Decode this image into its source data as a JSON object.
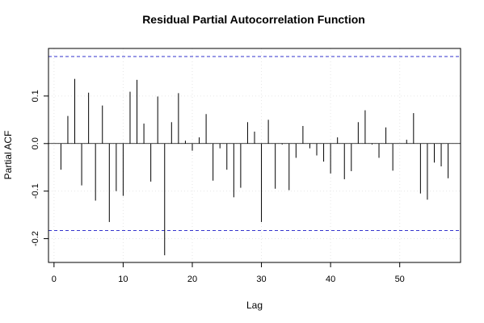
{
  "chart_data": {
    "type": "bar",
    "title": "Residual Partial Autocorrelation Function",
    "xlabel": "Lag",
    "ylabel": "Partial ACF",
    "xlim": [
      -0.8,
      58.8
    ],
    "ylim": [
      -0.25,
      0.2
    ],
    "x_ticks": [
      0,
      10,
      20,
      30,
      40,
      50
    ],
    "y_ticks": [
      -0.2,
      -0.1,
      0.0,
      0.1
    ],
    "y_tick_labels": [
      "-0.2",
      "-0.1",
      "0.0",
      "0.1"
    ],
    "grid": true,
    "confidence_bounds": [
      0.183,
      -0.183
    ],
    "bound_color": "#3333cc",
    "lags": [
      1,
      2,
      3,
      4,
      5,
      6,
      7,
      8,
      9,
      10,
      11,
      12,
      13,
      14,
      15,
      16,
      17,
      18,
      19,
      20,
      21,
      22,
      23,
      24,
      25,
      26,
      27,
      28,
      29,
      30,
      31,
      32,
      33,
      34,
      35,
      36,
      37,
      38,
      39,
      40,
      41,
      42,
      43,
      44,
      45,
      46,
      47,
      48,
      49,
      50,
      51,
      52,
      53,
      54,
      55,
      56,
      57
    ],
    "values": [
      -0.055,
      0.058,
      0.136,
      -0.088,
      0.107,
      -0.12,
      0.08,
      -0.165,
      -0.1,
      -0.11,
      0.109,
      0.134,
      0.042,
      -0.08,
      0.099,
      -0.235,
      0.045,
      0.106,
      0.006,
      -0.015,
      0.013,
      0.062,
      -0.078,
      -0.01,
      -0.055,
      -0.113,
      -0.093,
      0.045,
      0.025,
      -0.165,
      0.05,
      -0.095,
      -0.002,
      -0.098,
      -0.03,
      0.037,
      -0.01,
      -0.025,
      -0.038,
      -0.063,
      0.013,
      -0.075,
      -0.058,
      0.045,
      0.07,
      -0.002,
      -0.03,
      0.034,
      -0.057,
      0.0,
      0.008,
      0.064,
      -0.105,
      -0.118,
      -0.04,
      -0.048,
      -0.073
    ]
  }
}
